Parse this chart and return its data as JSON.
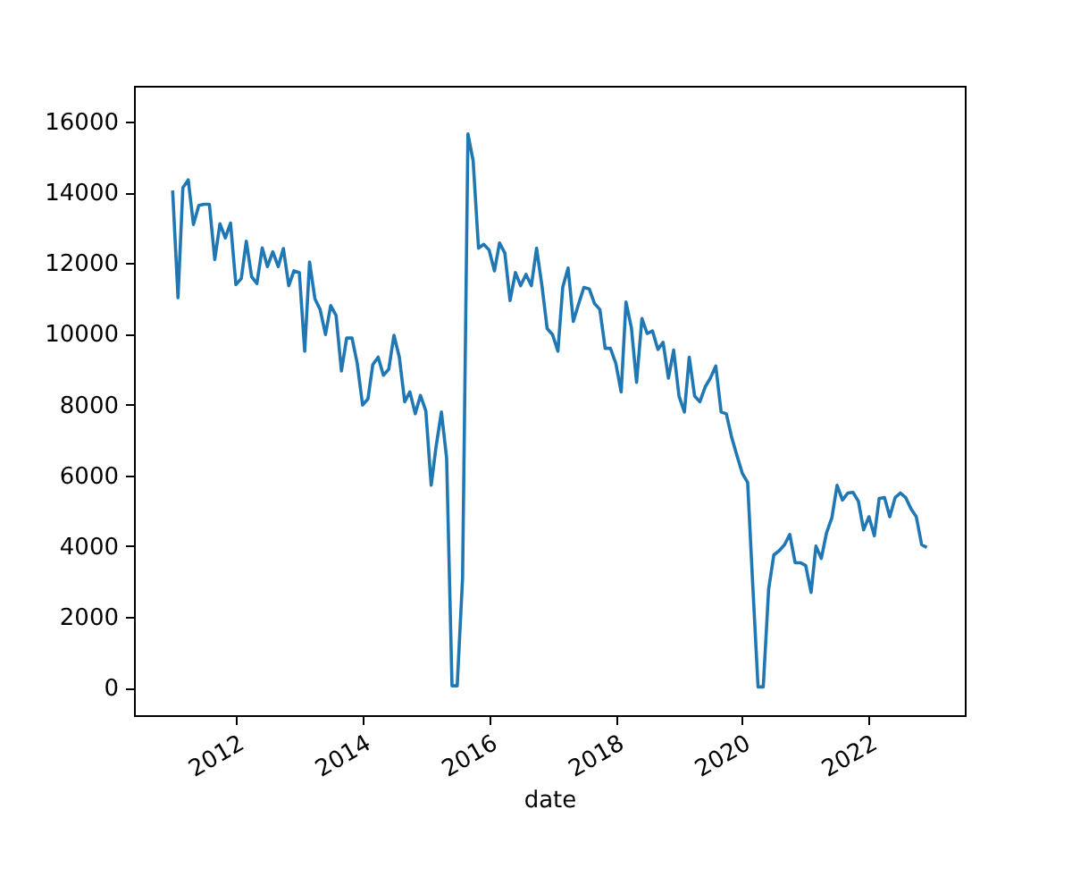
{
  "chart_data": {
    "type": "line",
    "xlabel": "date",
    "x": [
      "2011-01",
      "2011-02",
      "2011-03",
      "2011-04",
      "2011-05",
      "2011-06",
      "2011-07",
      "2011-08",
      "2011-09",
      "2011-10",
      "2011-11",
      "2011-12",
      "2012-01",
      "2012-02",
      "2012-03",
      "2012-04",
      "2012-05",
      "2012-06",
      "2012-07",
      "2012-08",
      "2012-09",
      "2012-10",
      "2012-11",
      "2012-12",
      "2013-01",
      "2013-02",
      "2013-03",
      "2013-04",
      "2013-05",
      "2013-06",
      "2013-07",
      "2013-08",
      "2013-09",
      "2013-10",
      "2013-11",
      "2013-12",
      "2014-01",
      "2014-02",
      "2014-03",
      "2014-04",
      "2014-05",
      "2014-06",
      "2014-07",
      "2014-08",
      "2014-09",
      "2014-10",
      "2014-11",
      "2014-12",
      "2015-01",
      "2015-02",
      "2015-03",
      "2015-04",
      "2015-05",
      "2015-06",
      "2015-07",
      "2015-08",
      "2015-09",
      "2015-10",
      "2015-11",
      "2015-12",
      "2016-01",
      "2016-02",
      "2016-03",
      "2016-04",
      "2016-05",
      "2016-06",
      "2016-07",
      "2016-08",
      "2016-09",
      "2016-10",
      "2016-11",
      "2016-12",
      "2017-01",
      "2017-02",
      "2017-03",
      "2017-04",
      "2017-05",
      "2017-06",
      "2017-07",
      "2017-08",
      "2017-09",
      "2017-10",
      "2017-11",
      "2017-12",
      "2018-01",
      "2018-02",
      "2018-03",
      "2018-04",
      "2018-05",
      "2018-06",
      "2018-07",
      "2018-08",
      "2018-09",
      "2018-10",
      "2018-11",
      "2018-12",
      "2019-01",
      "2019-02",
      "2019-03",
      "2019-04",
      "2019-05",
      "2019-06",
      "2019-07",
      "2019-08",
      "2019-09",
      "2019-10",
      "2019-11",
      "2019-12",
      "2020-01",
      "2020-02",
      "2020-03",
      "2020-04",
      "2020-05",
      "2020-06",
      "2020-07",
      "2020-08",
      "2020-09",
      "2020-10",
      "2020-11",
      "2020-12",
      "2021-01",
      "2021-02",
      "2021-03",
      "2021-04",
      "2021-05",
      "2021-06",
      "2021-07",
      "2021-08",
      "2021-09",
      "2021-10",
      "2021-11",
      "2021-12",
      "2022-01",
      "2022-02",
      "2022-03",
      "2022-04",
      "2022-05",
      "2022-06",
      "2022-07",
      "2022-08",
      "2022-09",
      "2022-10",
      "2022-11",
      "2022-12"
    ],
    "series": [
      {
        "color": "#1f77b4",
        "values": [
          14050,
          11020,
          14130,
          14350,
          13090,
          13630,
          13660,
          13660,
          12100,
          13110,
          12710,
          13130,
          11390,
          11560,
          12620,
          11610,
          11420,
          12430,
          11900,
          12320,
          11900,
          12410,
          11360,
          11780,
          11730,
          9510,
          12030,
          10990,
          10690,
          9980,
          10800,
          10520,
          8950,
          9880,
          9880,
          9170,
          7990,
          8160,
          9130,
          9340,
          8830,
          9000,
          9960,
          9340,
          8080,
          8360,
          7740,
          8260,
          7820,
          5720,
          6810,
          7790,
          6480,
          50,
          50,
          3110,
          15650,
          14890,
          12420,
          12530,
          12370,
          11780,
          12570,
          12280,
          10940,
          11730,
          11360,
          11680,
          11360,
          12420,
          11360,
          10150,
          9980,
          9510,
          11320,
          11860,
          10350,
          10850,
          11310,
          11270,
          10850,
          10690,
          9590,
          9590,
          9170,
          8360,
          10900,
          10180,
          8630,
          10430,
          10010,
          10080,
          9560,
          9760,
          8750,
          9540,
          8240,
          7790,
          9340,
          8240,
          8080,
          8500,
          8750,
          9090,
          7790,
          7740,
          7070,
          6560,
          6060,
          5800,
          2940,
          20,
          20,
          2780,
          3750,
          3870,
          4040,
          4330,
          3530,
          3530,
          3450,
          2690,
          4000,
          3650,
          4370,
          4800,
          5720,
          5300,
          5500,
          5520,
          5270,
          4460,
          4830,
          4290,
          5350,
          5370,
          4830,
          5370,
          5500,
          5370,
          5050,
          4830,
          4040,
          3960
        ]
      }
    ],
    "xlim": [
      "2010-05-23",
      "2023-07-08"
    ],
    "xticks": [
      "2012",
      "2014",
      "2016",
      "2018",
      "2020",
      "2022"
    ],
    "ylim": [
      -780,
      17010
    ],
    "yticks": [
      0,
      2000,
      4000,
      6000,
      8000,
      10000,
      12000,
      14000,
      16000
    ],
    "grid": false,
    "marker": "none",
    "line_style": "solid"
  }
}
